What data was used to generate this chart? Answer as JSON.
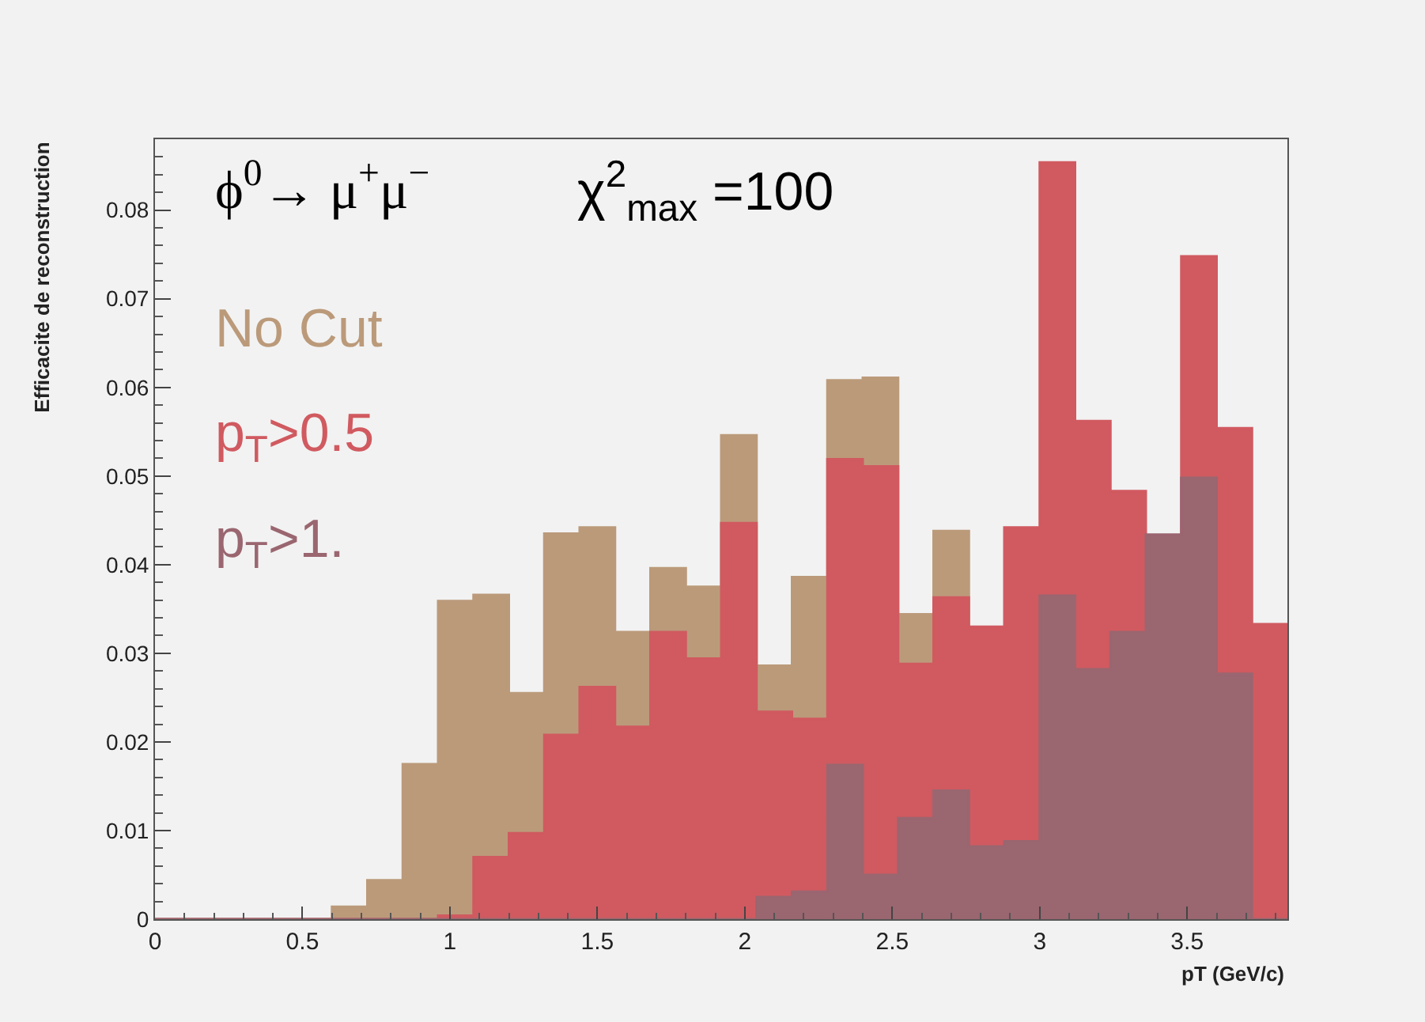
{
  "chart_data": {
    "type": "histogram",
    "bins": [
      0,
      0.12,
      0.24,
      0.36,
      0.48,
      0.6,
      0.72,
      0.84,
      0.96,
      1.08,
      1.2,
      1.32,
      1.44,
      1.56,
      1.68,
      1.8,
      1.92,
      2.04,
      2.16,
      2.28,
      2.4,
      2.52,
      2.64,
      2.76,
      2.88,
      3.0,
      3.12,
      3.24,
      3.36,
      3.48,
      3.6,
      3.72,
      3.84
    ],
    "series": [
      {
        "name": "No Cut",
        "color": "#bb9a7a",
        "values": [
          0,
          0,
          0,
          0,
          0,
          0.0014,
          0.0044,
          0.0175,
          0.0359,
          0.0366,
          0.0255,
          0.0435,
          0.0442,
          0.0324,
          0.0396,
          0.0375,
          0.0546,
          0.0286,
          0.0386,
          0.0608,
          0.0611,
          0.0344,
          0.0438,
          null,
          null,
          null,
          null,
          null,
          null,
          null,
          null,
          null
        ]
      },
      {
        "name": "p$_{T}$>0.5",
        "color": "#d05a60",
        "values": [
          0,
          0,
          0,
          0,
          0,
          0,
          0,
          0,
          0.0004,
          0.007,
          0.0097,
          0.0208,
          0.0262,
          0.0217,
          0.0324,
          0.0294,
          0.0447,
          0.0234,
          0.0226,
          0.0519,
          0.0511,
          0.0288,
          0.0363,
          0.033,
          0.0442,
          0.0854,
          0.0562,
          0.0483,
          null,
          0.0748,
          0.0554,
          0.0333
        ]
      },
      {
        "name": "p$_{T}$>1.",
        "color": "#9a6670",
        "values": [
          0,
          0,
          0,
          0,
          0,
          0,
          0,
          0,
          0,
          0,
          0,
          0,
          0,
          0,
          0,
          0,
          0,
          0.0025,
          0.0031,
          0.0174,
          0.005,
          0.0114,
          0.0145,
          0.0082,
          0.0088,
          0.0365,
          0.0282,
          0.0324,
          0.0434,
          0.0498,
          0.0277,
          0
        ]
      }
    ],
    "xlabel": "pT (GeV/c)",
    "ylabel": "Efficacite de reconstruction",
    "annotations": [
      "ϕ$^{0}$→ μ$^{+}$μ$^{−}$",
      "χ$^{2}$$_{max}$ =100"
    ],
    "xlim": [
      0,
      3.84
    ],
    "xticks": [
      0,
      0.5,
      1,
      1.5,
      2,
      2.5,
      3,
      3.5
    ],
    "ylim": [
      0,
      0.088
    ],
    "yticks": [
      0,
      0.01,
      0.02,
      0.03,
      0.04,
      0.05,
      0.06,
      0.07,
      0.08
    ],
    "grid": false
  }
}
